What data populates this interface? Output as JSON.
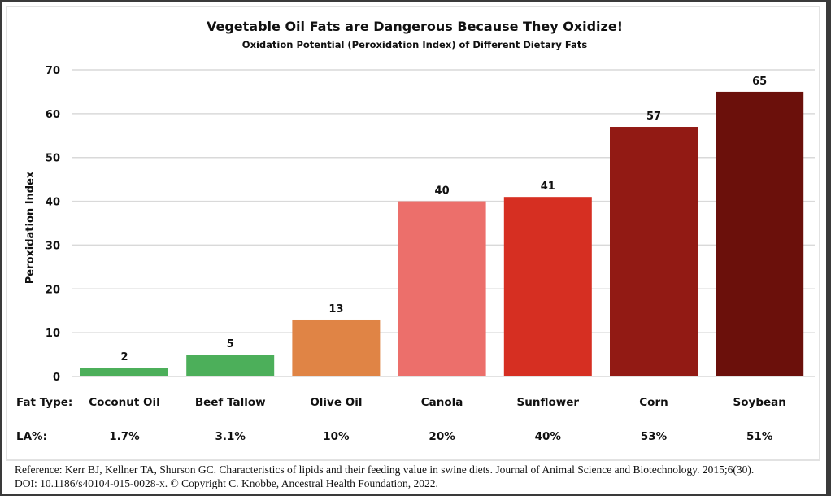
{
  "chart_data": {
    "type": "bar",
    "title": "Vegetable Oil Fats are Dangerous Because They Oxidize!",
    "subtitle": "Oxidation Potential (Peroxidation Index) of Different Dietary Fats",
    "xlabel": "Fat Type:",
    "ylabel": "Peroxidation Index",
    "ylim": [
      0,
      70
    ],
    "yticks": [
      0,
      10,
      20,
      30,
      40,
      50,
      60,
      70
    ],
    "grid": true,
    "legend": "none",
    "categories": [
      "Coconut Oil",
      "Beef Tallow",
      "Olive Oil",
      "Canola",
      "Sunflower",
      "Corn",
      "Soybean"
    ],
    "values": [
      2,
      5,
      13,
      40,
      41,
      57,
      65
    ],
    "data_labels": [
      "2",
      "5",
      "13",
      "40",
      "41",
      "57",
      "65"
    ],
    "colors": [
      "#4caf5a",
      "#4caf5a",
      "#e08445",
      "#ec6f6b",
      "#d62f22",
      "#921a14",
      "#6b100b"
    ],
    "secondary_row": {
      "label": "LA%:",
      "values": [
        "1.7%",
        "3.1%",
        "10%",
        "20%",
        "40%",
        "53%",
        "51%"
      ]
    }
  },
  "reference": {
    "line1": "Reference:  Kerr BJ, Kellner TA, Shurson GC. Characteristics of lipids and their feeding value in swine diets. Journal of Animal Science and Biotechnology. 2015;6(30).",
    "line2": "DOI: 10.1186/s40104-015-0028-x. © Copyright C. Knobbe, Ancestral Health Foundation, 2022."
  }
}
